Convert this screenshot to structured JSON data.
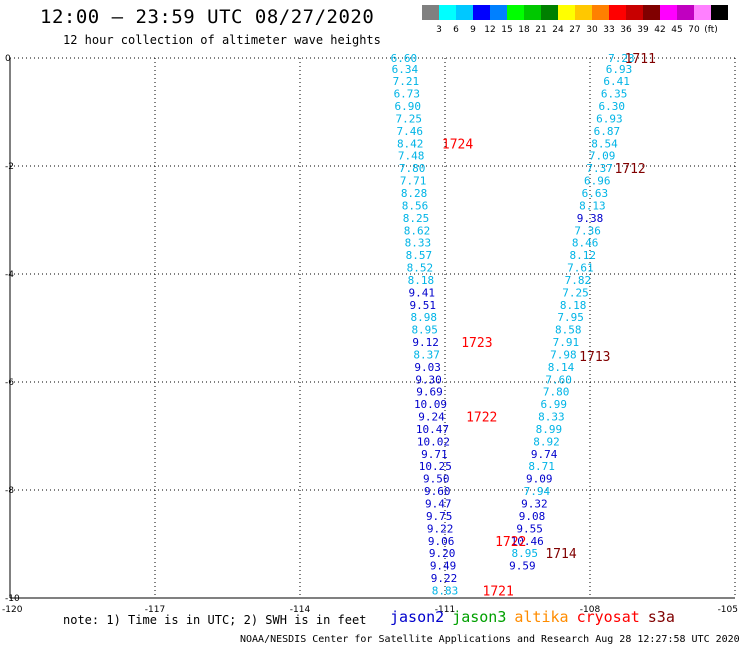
{
  "header": {
    "title": "12:00 – 23:59 UTC 08/27/2020",
    "subtitle": "12 hour collection of altimeter wave heights"
  },
  "colorbar": {
    "colors": [
      "#808080",
      "#00ffff",
      "#00c8ff",
      "#0000ff",
      "#0080ff",
      "#00ff00",
      "#00c800",
      "#008000",
      "#ffff00",
      "#ffc800",
      "#ff8000",
      "#ff0000",
      "#c80000",
      "#800000",
      "#ff00ff",
      "#c000c0",
      "#ff80ff",
      "#000000"
    ],
    "labels": [
      "3",
      "6",
      "9",
      "12",
      "15",
      "18",
      "21",
      "24",
      "27",
      "30",
      "33",
      "36",
      "39",
      "42",
      "45",
      "70",
      "(ft)"
    ]
  },
  "note": "note:  1) Time is in UTC;  2) SWH is in feet",
  "satellites": [
    {
      "name": "jason2",
      "color": "#0000cc"
    },
    {
      "name": "jason3",
      "color": "#00a000"
    },
    {
      "name": "altika",
      "color": "#ff8c00"
    },
    {
      "name": "cryosat",
      "color": "#ff0000"
    },
    {
      "name": "s3a",
      "color": "#800000"
    }
  ],
  "footer": "NOAA/NESDIS Center for Satellite Applications and Research    Aug 28 12:27:58 UTC 2020",
  "chart_data": {
    "type": "scatter",
    "xlim": [
      -120,
      -105
    ],
    "ylim": [
      -10,
      0
    ],
    "xticks": [
      -120,
      -117,
      -114,
      -111,
      -108,
      -105
    ],
    "yticks": [
      0,
      -2,
      -4,
      -6,
      -8,
      -10
    ],
    "grid": true,
    "colors": {
      "light": "#00b4e6",
      "dark": "#0000cc"
    },
    "series": [
      {
        "name": "track-west",
        "values": [
          {
            "x": -111.85,
            "y": 0.0,
            "v": "6.60",
            "c": "light"
          },
          {
            "x": -111.83,
            "y": -0.2,
            "v": "6.34",
            "c": "light"
          },
          {
            "x": -111.81,
            "y": -0.43,
            "v": "7.21",
            "c": "light"
          },
          {
            "x": -111.79,
            "y": -0.66,
            "v": "6.73",
            "c": "light"
          },
          {
            "x": -111.77,
            "y": -0.89,
            "v": "6.90",
            "c": "light"
          },
          {
            "x": -111.75,
            "y": -1.12,
            "v": "7.25",
            "c": "light"
          },
          {
            "x": -111.73,
            "y": -1.35,
            "v": "7.46",
            "c": "light"
          },
          {
            "x": -111.72,
            "y": -1.58,
            "v": "8.42",
            "c": "light"
          },
          {
            "x": -111.7,
            "y": -1.81,
            "v": "7.48",
            "c": "light"
          },
          {
            "x": -111.68,
            "y": -2.04,
            "v": "7.80",
            "c": "light"
          },
          {
            "x": -111.66,
            "y": -2.27,
            "v": "7.71",
            "c": "light"
          },
          {
            "x": -111.64,
            "y": -2.5,
            "v": "8.28",
            "c": "light"
          },
          {
            "x": -111.62,
            "y": -2.73,
            "v": "8.56",
            "c": "light"
          },
          {
            "x": -111.6,
            "y": -2.96,
            "v": "8.25",
            "c": "light"
          },
          {
            "x": -111.58,
            "y": -3.19,
            "v": "8.62",
            "c": "light"
          },
          {
            "x": -111.56,
            "y": -3.42,
            "v": "8.33",
            "c": "light"
          },
          {
            "x": -111.54,
            "y": -3.65,
            "v": "8.57",
            "c": "light"
          },
          {
            "x": -111.52,
            "y": -3.88,
            "v": "8.52",
            "c": "light"
          },
          {
            "x": -111.5,
            "y": -4.11,
            "v": "8.18",
            "c": "light"
          },
          {
            "x": -111.48,
            "y": -4.34,
            "v": "9.41",
            "c": "dark"
          },
          {
            "x": -111.46,
            "y": -4.57,
            "v": "9.51",
            "c": "dark"
          },
          {
            "x": -111.44,
            "y": -4.8,
            "v": "8.98",
            "c": "light"
          },
          {
            "x": -111.42,
            "y": -5.03,
            "v": "8.95",
            "c": "light"
          },
          {
            "x": -111.4,
            "y": -5.26,
            "v": "9.12",
            "c": "dark"
          },
          {
            "x": -111.38,
            "y": -5.49,
            "v": "8.37",
            "c": "light"
          },
          {
            "x": -111.36,
            "y": -5.72,
            "v": "9.03",
            "c": "dark"
          },
          {
            "x": -111.34,
            "y": -5.95,
            "v": "9.30",
            "c": "dark"
          },
          {
            "x": -111.32,
            "y": -6.18,
            "v": "9.69",
            "c": "dark"
          },
          {
            "x": -111.3,
            "y": -6.41,
            "v": "10.09",
            "c": "dark"
          },
          {
            "x": -111.28,
            "y": -6.64,
            "v": "9.24",
            "c": "dark"
          },
          {
            "x": -111.26,
            "y": -6.87,
            "v": "10.47",
            "c": "dark"
          },
          {
            "x": -111.24,
            "y": -7.1,
            "v": "10.02",
            "c": "dark"
          },
          {
            "x": -111.22,
            "y": -7.33,
            "v": "9.71",
            "c": "dark"
          },
          {
            "x": -111.2,
            "y": -7.56,
            "v": "10.25",
            "c": "dark"
          },
          {
            "x": -111.18,
            "y": -7.79,
            "v": "9.50",
            "c": "dark"
          },
          {
            "x": -111.16,
            "y": -8.02,
            "v": "9.60",
            "c": "dark"
          },
          {
            "x": -111.14,
            "y": -8.25,
            "v": "9.47",
            "c": "dark"
          },
          {
            "x": -111.12,
            "y": -8.48,
            "v": "9.75",
            "c": "dark"
          },
          {
            "x": -111.1,
            "y": -8.71,
            "v": "9.22",
            "c": "dark"
          },
          {
            "x": -111.08,
            "y": -8.94,
            "v": "9.06",
            "c": "dark"
          },
          {
            "x": -111.06,
            "y": -9.17,
            "v": "9.20",
            "c": "dark"
          },
          {
            "x": -111.04,
            "y": -9.4,
            "v": "9.49",
            "c": "dark"
          },
          {
            "x": -111.02,
            "y": -9.63,
            "v": "9.22",
            "c": "dark"
          },
          {
            "x": -111.0,
            "y": -9.86,
            "v": "8.83",
            "c": "light"
          }
        ]
      },
      {
        "name": "track-east",
        "values": [
          {
            "x": -107.35,
            "y": 0.0,
            "v": "7.23",
            "c": "light"
          },
          {
            "x": -107.4,
            "y": -0.2,
            "v": "6.93",
            "c": "light"
          },
          {
            "x": -107.45,
            "y": -0.43,
            "v": "6.41",
            "c": "light"
          },
          {
            "x": -107.5,
            "y": -0.66,
            "v": "6.35",
            "c": "light"
          },
          {
            "x": -107.55,
            "y": -0.89,
            "v": "6.30",
            "c": "light"
          },
          {
            "x": -107.6,
            "y": -1.12,
            "v": "6.93",
            "c": "light"
          },
          {
            "x": -107.65,
            "y": -1.35,
            "v": "6.87",
            "c": "light"
          },
          {
            "x": -107.7,
            "y": -1.58,
            "v": "8.54",
            "c": "light"
          },
          {
            "x": -107.75,
            "y": -1.81,
            "v": "7.09",
            "c": "light"
          },
          {
            "x": -107.8,
            "y": -2.04,
            "v": "7.37",
            "c": "light"
          },
          {
            "x": -107.85,
            "y": -2.27,
            "v": "6.96",
            "c": "light"
          },
          {
            "x": -107.9,
            "y": -2.5,
            "v": "6.63",
            "c": "light"
          },
          {
            "x": -107.95,
            "y": -2.73,
            "v": "8.13",
            "c": "light"
          },
          {
            "x": -108.0,
            "y": -2.96,
            "v": "9.38",
            "c": "dark"
          },
          {
            "x": -108.05,
            "y": -3.19,
            "v": "7.36",
            "c": "light"
          },
          {
            "x": -108.1,
            "y": -3.42,
            "v": "8.46",
            "c": "light"
          },
          {
            "x": -108.15,
            "y": -3.65,
            "v": "8.12",
            "c": "light"
          },
          {
            "x": -108.2,
            "y": -3.88,
            "v": "7.61",
            "c": "light"
          },
          {
            "x": -108.25,
            "y": -4.11,
            "v": "7.82",
            "c": "light"
          },
          {
            "x": -108.3,
            "y": -4.34,
            "v": "7.25",
            "c": "light"
          },
          {
            "x": -108.35,
            "y": -4.57,
            "v": "8.18",
            "c": "light"
          },
          {
            "x": -108.4,
            "y": -4.8,
            "v": "7.95",
            "c": "light"
          },
          {
            "x": -108.45,
            "y": -5.03,
            "v": "8.58",
            "c": "light"
          },
          {
            "x": -108.5,
            "y": -5.26,
            "v": "7.91",
            "c": "light"
          },
          {
            "x": -108.55,
            "y": -5.49,
            "v": "7.98",
            "c": "light"
          },
          {
            "x": -108.6,
            "y": -5.72,
            "v": "8.14",
            "c": "light"
          },
          {
            "x": -108.65,
            "y": -5.95,
            "v": "7.60",
            "c": "light"
          },
          {
            "x": -108.7,
            "y": -6.18,
            "v": "7.80",
            "c": "light"
          },
          {
            "x": -108.75,
            "y": -6.41,
            "v": "6.99",
            "c": "light"
          },
          {
            "x": -108.8,
            "y": -6.64,
            "v": "8.33",
            "c": "light"
          },
          {
            "x": -108.85,
            "y": -6.87,
            "v": "8.99",
            "c": "light"
          },
          {
            "x": -108.9,
            "y": -7.1,
            "v": "8.92",
            "c": "light"
          },
          {
            "x": -108.95,
            "y": -7.33,
            "v": "9.74",
            "c": "dark"
          },
          {
            "x": -109.0,
            "y": -7.56,
            "v": "8.71",
            "c": "light"
          },
          {
            "x": -109.05,
            "y": -7.79,
            "v": "9.09",
            "c": "dark"
          },
          {
            "x": -109.1,
            "y": -8.02,
            "v": "7.94",
            "c": "light"
          },
          {
            "x": -109.15,
            "y": -8.25,
            "v": "9.32",
            "c": "dark"
          },
          {
            "x": -109.2,
            "y": -8.48,
            "v": "9.08",
            "c": "dark"
          },
          {
            "x": -109.25,
            "y": -8.71,
            "v": "9.55",
            "c": "dark"
          },
          {
            "x": -109.3,
            "y": -8.94,
            "v": "10.46",
            "c": "dark"
          },
          {
            "x": -109.35,
            "y": -9.17,
            "v": "8.95",
            "c": "light"
          },
          {
            "x": -109.4,
            "y": -9.4,
            "v": "9.59",
            "c": "dark"
          }
        ]
      }
    ],
    "annotations": [
      {
        "text": "1711",
        "x": -106.96,
        "y": 0.0,
        "color": "#800000"
      },
      {
        "text": "1724",
        "x": -110.74,
        "y": -1.58,
        "color": "#ff0000"
      },
      {
        "text": "1712",
        "x": -107.17,
        "y": -2.04,
        "color": "#800000"
      },
      {
        "text": "1723",
        "x": -110.34,
        "y": -5.26,
        "color": "#ff0000"
      },
      {
        "text": "1713",
        "x": -107.9,
        "y": -5.52,
        "color": "#800000"
      },
      {
        "text": "1722",
        "x": -110.24,
        "y": -6.64,
        "color": "#ff0000"
      },
      {
        "text": "1722",
        "x": -109.64,
        "y": -8.94,
        "color": "#ff0000"
      },
      {
        "text": "1714",
        "x": -108.6,
        "y": -9.17,
        "color": "#800000"
      },
      {
        "text": "1721",
        "x": -109.9,
        "y": -9.86,
        "color": "#ff0000"
      }
    ]
  }
}
